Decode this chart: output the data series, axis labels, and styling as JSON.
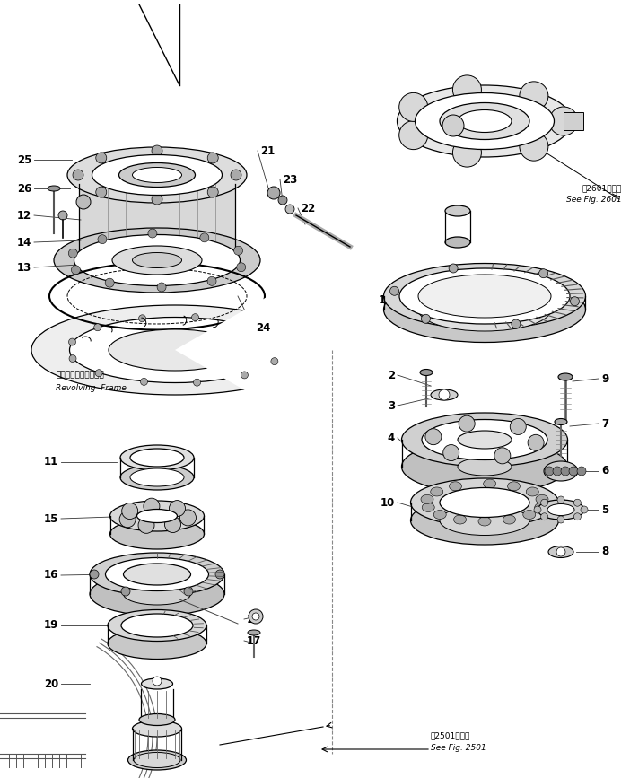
{
  "bg_color": "#ffffff",
  "fig_width": 7.02,
  "fig_height": 8.67,
  "dpi": 100,
  "annotations_right_top_jp": "第2601図参照",
  "annotations_right_top_en": "See Fig. 2601",
  "annotations_bottom_jp": "第2501図参照",
  "annotations_bottom_en": "See Fig. 2501",
  "revolving_frame_jp": "レボルビングフレーム",
  "revolving_frame_en": "Revolving  Frame"
}
